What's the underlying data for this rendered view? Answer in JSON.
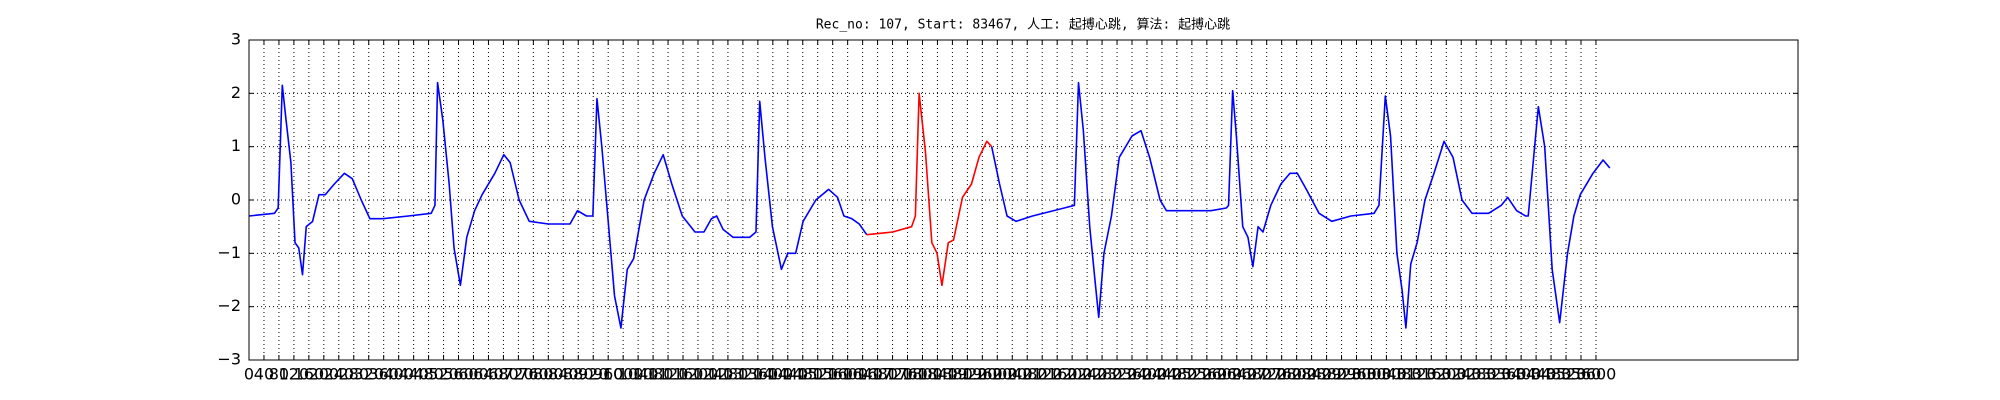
{
  "chart_data": {
    "type": "line",
    "title": "Rec_no: 107, Start: 83467, 人工: 起搏心跳, 算法: 起搏心跳",
    "grid": true,
    "xlim": [
      0,
      4140
    ],
    "ylim": [
      -3,
      3
    ],
    "yticks": [
      {
        "value": -3,
        "label": "−3"
      },
      {
        "value": -2,
        "label": "−2"
      },
      {
        "value": -1,
        "label": "−1"
      },
      0,
      1,
      2,
      3
    ],
    "xticks": [
      0,
      40,
      80,
      120,
      160,
      200,
      240,
      280,
      320,
      360,
      400,
      440,
      480,
      520,
      560,
      600,
      640,
      680,
      720,
      760,
      800,
      840,
      880,
      920,
      960,
      1000,
      1040,
      1080,
      1120,
      1160,
      1200,
      1240,
      1280,
      1320,
      1360,
      1400,
      1440,
      1480,
      1520,
      1560,
      1600,
      1640,
      1680,
      1720,
      1760,
      1800,
      1840,
      1880,
      1920,
      1960,
      2000,
      2040,
      2080,
      2120,
      2160,
      2200,
      2240,
      2280,
      2320,
      2360,
      2400,
      2440,
      2480,
      2520,
      2560,
      2600,
      2640,
      2680,
      2720,
      2760,
      2800,
      2840,
      2880,
      2920,
      2960,
      3000,
      3040,
      3080,
      3120,
      3160,
      3200,
      3240,
      3280,
      3320,
      3360,
      3400,
      3440,
      3480,
      3520,
      3560,
      3600
    ],
    "series": [
      {
        "color": "#0000ff",
        "x": [
          0,
          68,
          78,
          89,
          99,
          112,
          123,
          133,
          143,
          153,
          170,
          187,
          204,
          228,
          255,
          276,
          300,
          323,
          358,
          426,
          487,
          497,
          504,
          518,
          535,
          548,
          565,
          582,
          603,
          623,
          657,
          681,
          698,
          722,
          749,
          800,
          858,
          878,
          902,
          919,
          930,
          943,
          960,
          977,
          994,
          1011,
          1028,
          1056,
          1083,
          1107,
          1130,
          1158,
          1192,
          1216,
          1236,
          1250,
          1267,
          1294,
          1338,
          1355,
          1365,
          1379,
          1399,
          1423,
          1440,
          1461,
          1481,
          1515,
          1549,
          1573,
          1590,
          1611,
          1631,
          1651
        ],
        "values": [
          -0.3,
          -0.25,
          -0.15,
          2.15,
          1.5,
          0.7,
          -0.8,
          -0.9,
          -1.4,
          -0.5,
          -0.4,
          0.1,
          0.1,
          0.3,
          0.5,
          0.4,
          0.0,
          -0.35,
          -0.35,
          -0.3,
          -0.25,
          -0.1,
          2.2,
          1.5,
          0.3,
          -0.9,
          -1.6,
          -0.7,
          -0.2,
          0.1,
          0.5,
          0.85,
          0.7,
          0.0,
          -0.4,
          -0.45,
          -0.45,
          -0.2,
          -0.3,
          -0.3,
          1.9,
          1.0,
          -0.4,
          -1.8,
          -2.4,
          -1.3,
          -1.1,
          0.0,
          0.5,
          0.85,
          0.3,
          -0.3,
          -0.6,
          -0.6,
          -0.35,
          -0.3,
          -0.55,
          -0.7,
          -0.7,
          -0.6,
          1.85,
          0.8,
          -0.5,
          -1.3,
          -1.0,
          -1.0,
          -0.4,
          0.0,
          0.2,
          0.05,
          -0.3,
          -0.35,
          -0.45,
          -0.65
        ]
      },
      {
        "color": "#ff0000",
        "x": [
          1651,
          1720,
          1771,
          1781,
          1791,
          1808,
          1825,
          1839,
          1852,
          1869,
          1883,
          1907,
          1931,
          1951,
          1972,
          1985
        ],
        "values": [
          -0.65,
          -0.6,
          -0.5,
          -0.3,
          2.0,
          0.9,
          -0.8,
          -1.0,
          -1.6,
          -0.8,
          -0.75,
          0.05,
          0.3,
          0.8,
          1.1,
          1.0
        ]
      },
      {
        "color": "#0000ff",
        "x": [
          1985,
          2006,
          2026,
          2050,
          2094,
          2179,
          2206,
          2217,
          2230,
          2247,
          2261,
          2271,
          2285,
          2305,
          2326,
          2360,
          2384,
          2407,
          2435,
          2452,
          2503,
          2571,
          2612,
          2618,
          2629,
          2639,
          2656,
          2670,
          2683,
          2697,
          2710,
          2731,
          2758,
          2782,
          2802,
          2826,
          2860,
          2894,
          2945,
          3007,
          3020,
          3037,
          3051,
          3068,
          3082,
          3092,
          3105,
          3122,
          3143,
          3167,
          3194,
          3218,
          3242,
          3269,
          3313,
          3347,
          3364,
          3388,
          3412,
          3419,
          3446,
          3463,
          3483,
          3503,
          3524,
          3541,
          3558,
          3592,
          3619,
          3637
        ],
        "values": [
          1.0,
          0.3,
          -0.3,
          -0.4,
          -0.3,
          -0.15,
          -0.1,
          2.2,
          1.3,
          -0.5,
          -1.5,
          -2.2,
          -1.0,
          -0.3,
          0.8,
          1.2,
          1.3,
          0.8,
          0.0,
          -0.2,
          -0.2,
          -0.2,
          -0.15,
          -0.1,
          2.05,
          1.2,
          -0.5,
          -0.7,
          -1.25,
          -0.5,
          -0.6,
          -0.1,
          0.3,
          0.5,
          0.5,
          0.2,
          -0.25,
          -0.4,
          -0.3,
          -0.25,
          -0.1,
          1.95,
          1.2,
          -1.0,
          -1.7,
          -2.4,
          -1.2,
          -0.8,
          0.0,
          0.5,
          1.1,
          0.8,
          0.0,
          -0.25,
          -0.25,
          -0.1,
          0.05,
          -0.2,
          -0.3,
          -0.3,
          1.75,
          1.0,
          -1.3,
          -2.3,
          -1.0,
          -0.3,
          0.1,
          0.5,
          0.75,
          0.6
        ]
      }
    ]
  }
}
